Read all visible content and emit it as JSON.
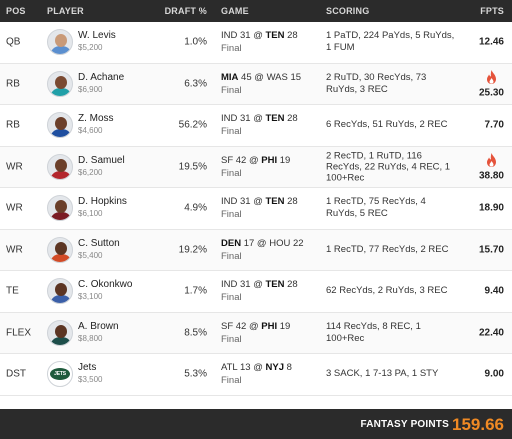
{
  "header": {
    "pos": "POS",
    "player": "PLAYER",
    "draft": "DRAFT %",
    "game": "GAME",
    "scoring": "SCORING",
    "fpts": "FPTS"
  },
  "rows": [
    {
      "pos": "QB",
      "name": "W. Levis",
      "salary": "$5,200",
      "draft": "1.0%",
      "g_left": "IND 31 @ ",
      "g_right": "TEN",
      "g_right_score": " 28",
      "g_bold": "right",
      "status": "Final",
      "scoring": "1 PaTD, 224 PaYds, 5 RuYds, 1 FUM",
      "fpts": "12.46",
      "fire": false,
      "skin": "#c99a78",
      "jersey": "#5b8fcf"
    },
    {
      "pos": "RB",
      "name": "D. Achane",
      "salary": "$6,900",
      "draft": "6.3%",
      "g_left": "MIA",
      "g_left_score": " 45",
      "g_right": " @ WAS 15",
      "g_bold": "left",
      "status": "Final",
      "scoring": "2 RuTD, 30 RecYds, 73 RuYds, 3 REC",
      "fpts": "25.30",
      "fire": true,
      "skin": "#7a4a32",
      "jersey": "#21a0a8"
    },
    {
      "pos": "RB",
      "name": "Z. Moss",
      "salary": "$4,600",
      "draft": "56.2%",
      "g_left": "IND 31 @ ",
      "g_right": "TEN",
      "g_right_score": " 28",
      "g_bold": "right",
      "status": "Final",
      "scoring": "6 RecYds, 51 RuYds, 2 REC",
      "fpts": "7.70",
      "fire": false,
      "skin": "#6b3f2a",
      "jersey": "#1f4fa0"
    },
    {
      "pos": "WR",
      "name": "D. Samuel",
      "salary": "$6,200",
      "draft": "19.5%",
      "g_left": "SF 42 @ ",
      "g_right": "PHI",
      "g_right_score": " 19",
      "g_bold": "right",
      "status": "Final",
      "scoring": "2 RecTD, 1 RuTD, 116 RecYds, 22 RuYds, 4 REC, 1 100+Rec",
      "fpts": "38.80",
      "fire": true,
      "skin": "#6b3f2a",
      "jersey": "#b3262d"
    },
    {
      "pos": "WR",
      "name": "D. Hopkins",
      "salary": "$6,100",
      "draft": "4.9%",
      "g_left": "IND 31 @ ",
      "g_right": "TEN",
      "g_right_score": " 28",
      "g_bold": "right",
      "status": "Final",
      "scoring": "1 RecTD, 75 RecYds, 4 RuYds, 5 REC",
      "fpts": "18.90",
      "fire": false,
      "skin": "#6b3f2a",
      "jersey": "#7b1c24"
    },
    {
      "pos": "WR",
      "name": "C. Sutton",
      "salary": "$5,400",
      "draft": "19.2%",
      "g_left": "DEN",
      "g_left_score": " 17",
      "g_right": " @ HOU 22",
      "g_bold": "left",
      "status": "Final",
      "scoring": "1 RecTD, 77 RecYds, 2 REC",
      "fpts": "15.70",
      "fire": false,
      "skin": "#5c3523",
      "jersey": "#d24a26"
    },
    {
      "pos": "TE",
      "name": "C. Okonkwo",
      "salary": "$3,100",
      "draft": "1.7%",
      "g_left": "IND 31 @ ",
      "g_right": "TEN",
      "g_right_score": " 28",
      "g_bold": "right",
      "status": "Final",
      "scoring": "62 RecYds, 2 RuYds, 3 REC",
      "fpts": "9.40",
      "fire": false,
      "skin": "#5c3523",
      "jersey": "#3b5fa8"
    },
    {
      "pos": "FLEX",
      "name": "A. Brown",
      "salary": "$8,800",
      "draft": "8.5%",
      "g_left": "SF 42 @ ",
      "g_right": "PHI",
      "g_right_score": " 19",
      "g_bold": "right",
      "status": "Final",
      "scoring": "114 RecYds, 8 REC, 1 100+Rec",
      "fpts": "22.40",
      "fire": false,
      "skin": "#5c3523",
      "jersey": "#1d4e4a"
    },
    {
      "pos": "DST",
      "name": "Jets",
      "salary": "$3,500",
      "draft": "5.3%",
      "g_left": "ATL 13 @ ",
      "g_right": "NYJ",
      "g_right_score": " 8",
      "g_bold": "right",
      "status": "Final",
      "scoring": "3 SACK, 1 7-13 PA, 1 STY",
      "fpts": "9.00",
      "fire": false,
      "team_logo": true,
      "logo_text": "JETS"
    }
  ],
  "footer": {
    "label": "FANTASY POINTS",
    "total": "159.66"
  },
  "colors": {
    "header_bg": "#2b2b2b",
    "accent_orange": "#f08a24",
    "fire_red": "#e5533b"
  },
  "icons": {
    "fire": "fire-icon",
    "avatar": "player-headshot",
    "team_logo": "jets-logo-icon"
  }
}
